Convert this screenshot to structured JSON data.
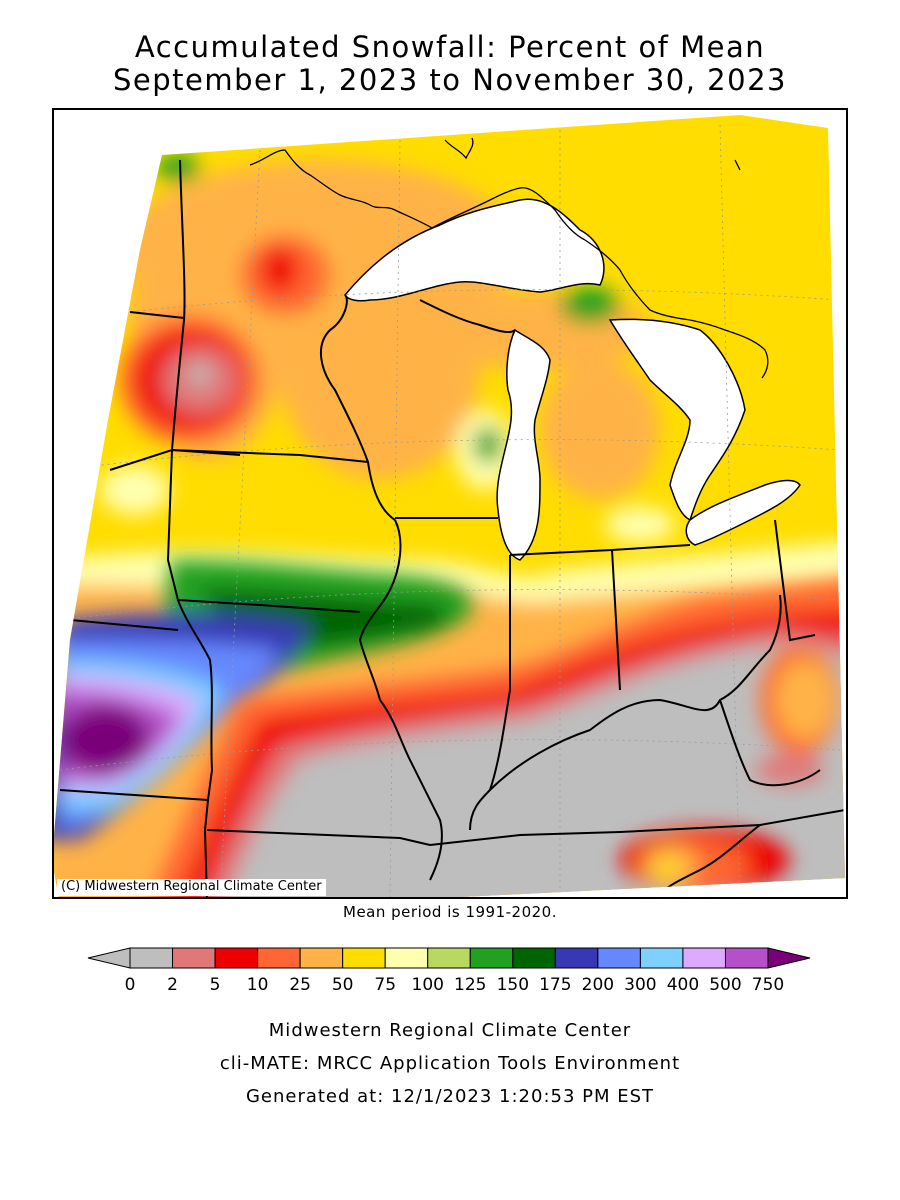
{
  "title": {
    "line1": "Accumulated Snowfall: Percent of Mean",
    "line2": "September 1, 2023 to November 30, 2023"
  },
  "map": {
    "copyright": "(C) Midwestern Regional Climate Center",
    "mean_period": "Mean period is 1991-2020."
  },
  "legend": {
    "labels": [
      "0",
      "2",
      "5",
      "10",
      "25",
      "50",
      "75",
      "100",
      "125",
      "150",
      "175",
      "200",
      "300",
      "400",
      "500",
      "750"
    ],
    "colors": [
      "#bebebe",
      "#e07878",
      "#ee0000",
      "#ff6633",
      "#ffb347",
      "#ffdd00",
      "#ffffb0",
      "#b8d860",
      "#22a022",
      "#006400",
      "#3838b4",
      "#6688ff",
      "#7fcfff",
      "#dcaaff",
      "#b450c8"
    ],
    "under_color": "#bebebe",
    "over_color": "#7a007a"
  },
  "credits": {
    "line1": "Midwestern Regional Climate Center",
    "line2": "cli-MATE: MRCC Application Tools Environment",
    "line3": "Generated at: 12/1/2023 1:20:53 PM EST"
  }
}
